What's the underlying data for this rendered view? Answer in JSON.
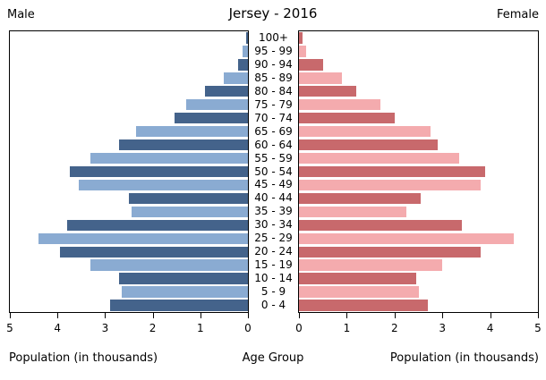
{
  "title": "Jersey - 2016",
  "header": {
    "left": "Male",
    "right": "Female"
  },
  "axis_labels": {
    "left": "Population (in thousands)",
    "center": "Age Group",
    "right": "Population (in thousands)"
  },
  "colors": {
    "male_dark": "#44638b",
    "male_light": "#8aabd2",
    "female_dark": "#c8696c",
    "female_light": "#f4abae",
    "axis": "#000000",
    "background": "#ffffff"
  },
  "chart_data": {
    "type": "bar",
    "subtype": "population-pyramid",
    "orientation": "horizontal",
    "title": "Jersey - 2016",
    "categories_top_to_bottom": [
      "100+",
      "95 - 99",
      "90 - 94",
      "85 - 89",
      "80 - 84",
      "75 - 79",
      "70 - 74",
      "65 - 69",
      "60 - 64",
      "55 - 59",
      "50 - 54",
      "45 - 49",
      "40 - 44",
      "35 - 39",
      "30 - 34",
      "25 - 29",
      "20 - 24",
      "15 - 19",
      "10 - 14",
      "5 - 9",
      "0 - 4"
    ],
    "series": [
      {
        "name": "Male",
        "side": "left",
        "values_top_to_bottom": [
          0.03,
          0.12,
          0.2,
          0.5,
          0.9,
          1.3,
          1.55,
          2.35,
          2.7,
          3.3,
          3.75,
          3.55,
          2.5,
          2.45,
          3.8,
          4.4,
          3.95,
          3.3,
          2.7,
          2.65,
          2.9
        ]
      },
      {
        "name": "Female",
        "side": "right",
        "values_top_to_bottom": [
          0.07,
          0.15,
          0.5,
          0.9,
          1.2,
          1.7,
          2.0,
          2.75,
          2.9,
          3.35,
          3.9,
          3.8,
          2.55,
          2.25,
          3.4,
          4.5,
          3.8,
          3.0,
          2.45,
          2.5,
          2.7
        ]
      }
    ],
    "xlim": [
      0,
      5
    ],
    "ticks_left_panel": [
      5,
      4,
      3,
      2,
      1,
      0
    ],
    "ticks_right_panel": [
      0,
      1,
      2,
      3,
      4,
      5
    ],
    "xlabel": "Population (in thousands)",
    "ylabel": "Age Group",
    "bar_color_pattern": "alternating dark/light, bottom row (0 - 4) dark",
    "grid": false,
    "legend_position": "none"
  }
}
